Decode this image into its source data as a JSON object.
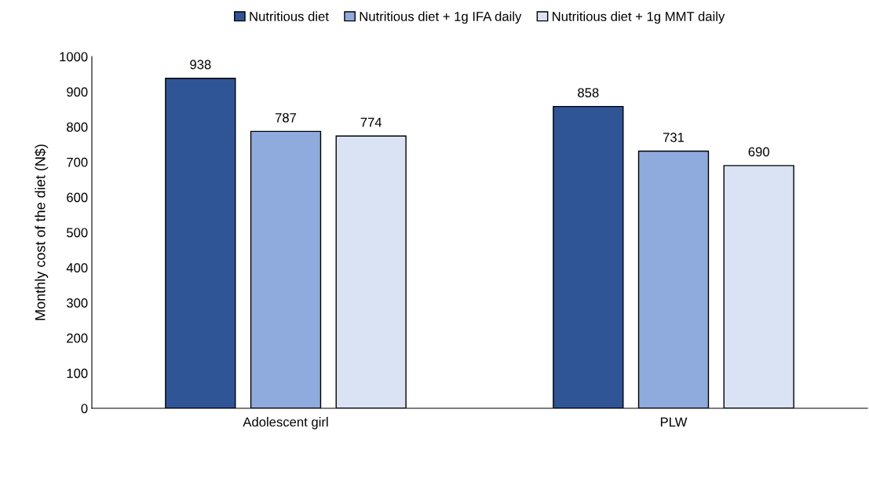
{
  "chart_data": {
    "type": "bar",
    "ylabel": "Monthly cost of the diet (N$)",
    "categories": [
      "Adolescent girl",
      "PLW"
    ],
    "series": [
      {
        "name": "Nutritious diet",
        "color": "#2f5597",
        "values": [
          938,
          858
        ]
      },
      {
        "name": "Nutritious diet + 1g IFA daily",
        "color": "#8faadc",
        "values": [
          787,
          731
        ]
      },
      {
        "name": "Nutritious diet + 1g MMT daily",
        "color": "#dae3f3",
        "values": [
          774,
          690
        ]
      }
    ],
    "ylim": [
      0,
      1000
    ],
    "yticks": [
      0,
      100,
      200,
      300,
      400,
      500,
      600,
      700,
      800,
      900,
      1000
    ],
    "data_labels": true,
    "grid": false,
    "legend": "top"
  }
}
